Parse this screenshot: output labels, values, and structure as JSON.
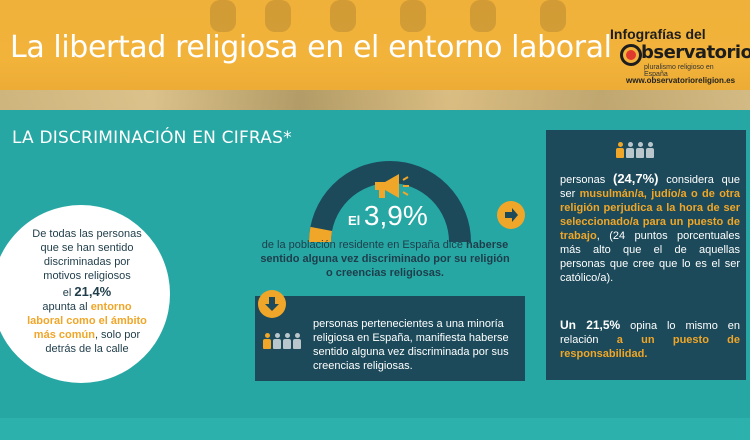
{
  "header": {
    "title": "La libertad religiosa en el entorno laboral",
    "logo_top": "Infografías del",
    "logo_word": "bservatorio",
    "logo_superscript": "del",
    "logo_sub": "pluralismo religioso en España",
    "logo_url": "www.observatorioreligion.es"
  },
  "section": {
    "title": "LA DISCRIMINACIÓN EN CIFRAS*"
  },
  "circle": {
    "line1": "De todas las personas que se han sentido discriminadas por motivos religiosos",
    "el": "el",
    "pct": "21,4%",
    "apunta": "apunta al",
    "highlight": "entorno laboral como el ámbito más común",
    "rest": ", solo por detrás de la calle"
  },
  "gauge": {
    "prefix": "El",
    "pct": "3,9%",
    "fill_fraction": 0.039,
    "desc_plain": "de la población residente en España dice",
    "desc_bold": "haberse sentido alguna vez discriminado por su religión o creencias religiosas."
  },
  "minority": {
    "text": "personas pertenecientes a una minoría religiosa en España, manifiesta haberse sentido alguna vez discriminada por sus creencias religiosas."
  },
  "right": {
    "intro": "personas",
    "pct": "(24,7%)",
    "considera": "considera que ser",
    "highlight": "musulmán/a, judío/a o de otra religión perjudica a la hora de ser seleccionado/a para un puesto de trabajo",
    "rest": ", (24 puntos porcentuales más alto que el de aquellas personas que cree que lo es el ser católico/a).",
    "line2_pct": "Un 21,5%",
    "line2_mid": "opina lo mismo en relación",
    "line2_hl": "a un puesto de responsabilidad."
  },
  "colors": {
    "teal": "#26a7a4",
    "navy": "#1c4a5a",
    "orange": "#f0a628",
    "banner": "#f0b13a"
  },
  "icons": {
    "megaphone": "megaphone-icon",
    "arrow_right": "arrow-right-icon",
    "arrow_down": "arrow-down-icon",
    "people": "people-icon"
  }
}
